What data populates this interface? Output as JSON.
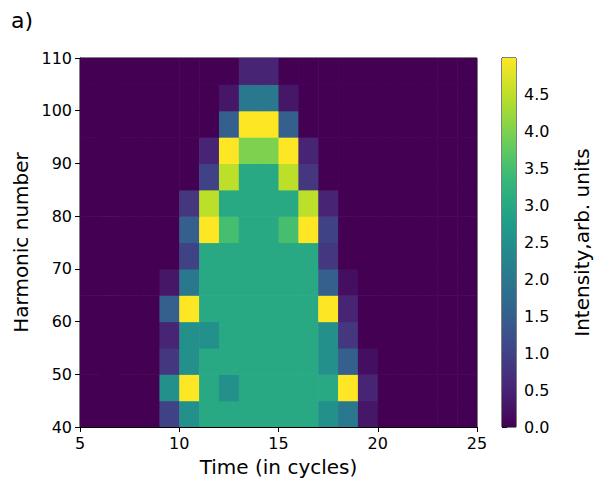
{
  "chart_data": {
    "type": "heatmap",
    "annotation": "a)",
    "x_label": "Time (in cycles)",
    "y_label": "Harmonic number",
    "xlim": [
      5,
      25
    ],
    "xticks": [
      5,
      10,
      15,
      20,
      25
    ],
    "ylim": [
      40,
      110
    ],
    "yticks": [
      40,
      50,
      60,
      70,
      80,
      90,
      100,
      110
    ],
    "grid": false,
    "x": [
      5.5,
      6.5,
      7.5,
      8.5,
      9.5,
      10.5,
      11.5,
      12.5,
      13.5,
      14.5,
      15.5,
      16.5,
      17.5,
      18.5,
      19.5,
      20.5,
      21.5,
      22.5,
      23.5,
      24.5
    ],
    "y": [
      42.5,
      47.5,
      52.5,
      57.5,
      62.5,
      67.5,
      72.5,
      77.5,
      82.5,
      87.5,
      92.5,
      97.5,
      102.5,
      107.5
    ],
    "values": [
      [
        0,
        0,
        0,
        0,
        1.0,
        2.5,
        3,
        3,
        3,
        3,
        3,
        3,
        2.5,
        2,
        0.3,
        0,
        0,
        0,
        0,
        0
      ],
      [
        0,
        0,
        0,
        0,
        2.5,
        5.5,
        3,
        2.5,
        3,
        3,
        3,
        3,
        3,
        5.5,
        0.5,
        0,
        0,
        0,
        0,
        0
      ],
      [
        0,
        0,
        0,
        0,
        0.8,
        2.5,
        3,
        3,
        3,
        3,
        3,
        3,
        2.5,
        1.5,
        0.2,
        0,
        0,
        0,
        0,
        0
      ],
      [
        0,
        0,
        0,
        0,
        0.5,
        2.5,
        2.5,
        3,
        3,
        3,
        3,
        3,
        2.5,
        0.8,
        0,
        0,
        0,
        0,
        0,
        0
      ],
      [
        0,
        0,
        0,
        0,
        1.5,
        5.5,
        3,
        3,
        3,
        3,
        3,
        3,
        5.5,
        0.5,
        0,
        0,
        0,
        0,
        0,
        0
      ],
      [
        0,
        0,
        0,
        0,
        0.3,
        2,
        3,
        3,
        3,
        3,
        3,
        3,
        1.5,
        0.2,
        0,
        0,
        0,
        0,
        0,
        0
      ],
      [
        0,
        0,
        0,
        0,
        0,
        1,
        3,
        3,
        3,
        3,
        3,
        3,
        0.8,
        0,
        0,
        0,
        0,
        0,
        0,
        0
      ],
      [
        0,
        0,
        0,
        0,
        0,
        1.5,
        5.5,
        3.5,
        3,
        3,
        3.5,
        5.5,
        1,
        0,
        0,
        0,
        0,
        0,
        0,
        0
      ],
      [
        0,
        0,
        0,
        0,
        0,
        0.8,
        4.5,
        3,
        3,
        3,
        3,
        4.5,
        0.5,
        0,
        0,
        0,
        0,
        0,
        0,
        0
      ],
      [
        0,
        0,
        0,
        0,
        0,
        0,
        1,
        4.5,
        3,
        3,
        4.5,
        0.8,
        0,
        0,
        0,
        0,
        0,
        0,
        0,
        0
      ],
      [
        0,
        0,
        0,
        0,
        0,
        0,
        0.5,
        5.5,
        4,
        4,
        5.5,
        0.5,
        0,
        0,
        0,
        0,
        0,
        0,
        0,
        0
      ],
      [
        0,
        0,
        0,
        0,
        0,
        0,
        0,
        1.5,
        5.5,
        5.5,
        1.5,
        0,
        0,
        0,
        0,
        0,
        0,
        0,
        0,
        0
      ],
      [
        0,
        0,
        0,
        0,
        0,
        0,
        0,
        0.3,
        2,
        2,
        0.3,
        0,
        0,
        0,
        0,
        0,
        0,
        0,
        0,
        0
      ],
      [
        0,
        0,
        0,
        0,
        0,
        0,
        0,
        0,
        0.5,
        0.5,
        0,
        0,
        0,
        0,
        0,
        0,
        0,
        0,
        0,
        0
      ]
    ],
    "colorbar": {
      "label": "Intensity,arb. units",
      "range": [
        0,
        5
      ],
      "ticks": [
        {
          "value": 0,
          "label": "0.0"
        },
        0.5,
        {
          "value": 1,
          "label": "1.0"
        },
        1.5,
        {
          "value": 2,
          "label": "2.0"
        },
        2.5,
        {
          "value": 3,
          "label": "3.0"
        },
        3.5,
        {
          "value": 4,
          "label": "4.0"
        },
        4.5
      ]
    }
  }
}
